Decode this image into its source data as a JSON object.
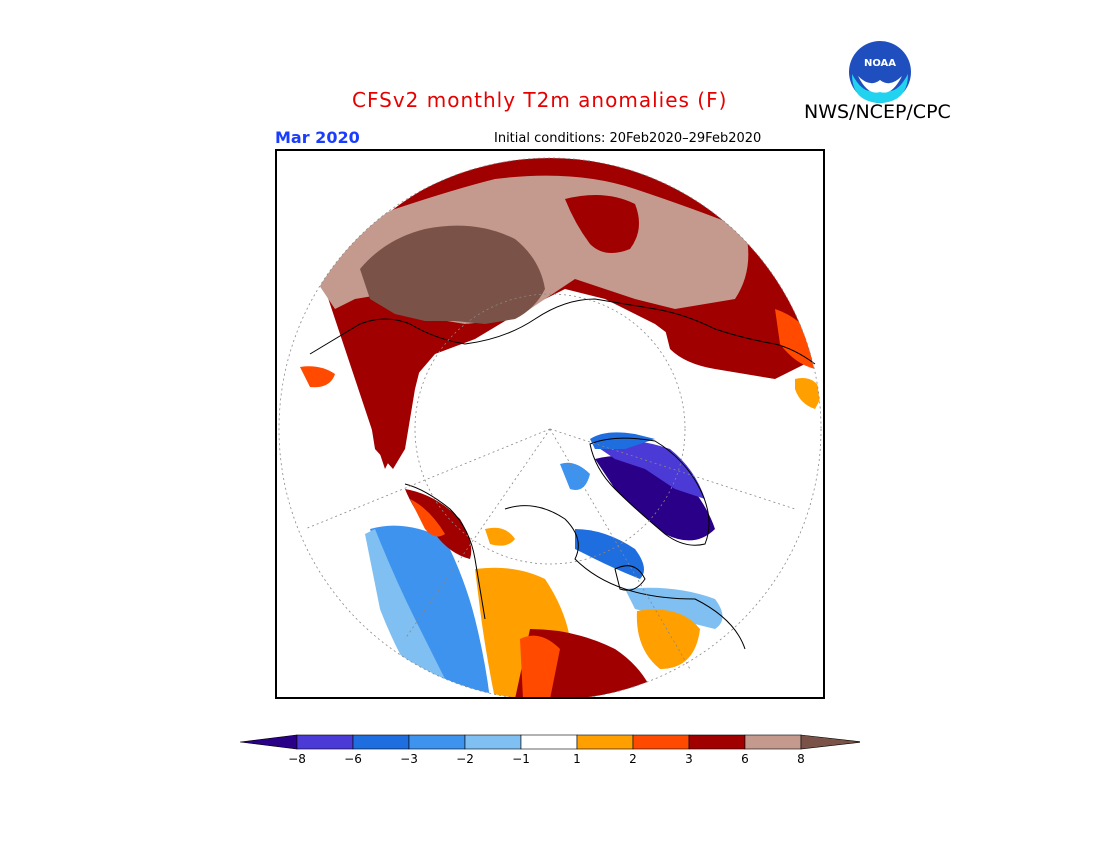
{
  "header": {
    "title": "CFSv2 monthly T2m anomalies (F)",
    "agency": "NWS/NCEP/CPC",
    "logo_text": "NOAA",
    "valid_month": "Mar 2020",
    "initial_conditions": "Initial conditions: 20Feb2020–29Feb2020"
  },
  "map": {
    "projection": "north polar stereographic",
    "variable": "T2m anomaly",
    "units": "F"
  },
  "colorbar": {
    "tick_labels": [
      "−8",
      "−6",
      "−3",
      "−2",
      "−1",
      "1",
      "2",
      "3",
      "6",
      "8"
    ],
    "colors": {
      "lt_-8": "#2a0088",
      "-8_-6": "#4b3ad6",
      "-6_-3": "#1e6ee0",
      "-3_-2": "#3d93ee",
      "-2_-1": "#7fbff2",
      "-1_1": "#ffffff",
      "1_2": "#ff9f00",
      "2_3": "#ff4a00",
      "3_6": "#a00000",
      "6_8": "#c49a8e",
      "gt_8": "#7a5247"
    }
  }
}
